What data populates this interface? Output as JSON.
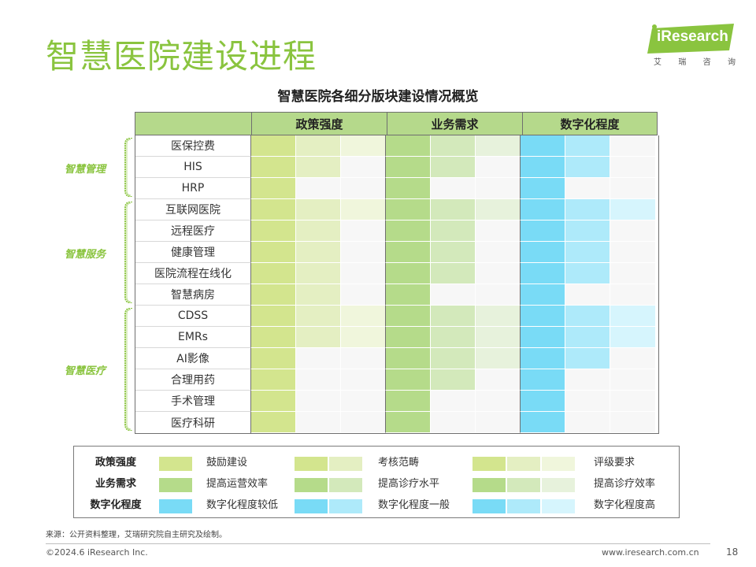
{
  "page": {
    "title": "智慧医院建设进程",
    "subtitle": "智慧医院各细分版块建设情况概览"
  },
  "logo": {
    "text": "iResearch",
    "sub": [
      "艾",
      "瑞",
      "咨",
      "询"
    ],
    "color": "#8ac43f"
  },
  "matrix": {
    "columns": [
      "政策强度",
      "业务需求",
      "数字化程度"
    ],
    "groups": [
      {
        "label": "智慧管理",
        "rows": [
          {
            "name": "医保控费",
            "levels": [
              3,
              3,
              2
            ]
          },
          {
            "name": "HIS",
            "levels": [
              2,
              2,
              2
            ]
          },
          {
            "name": "HRP",
            "levels": [
              1,
              1,
              1
            ]
          }
        ]
      },
      {
        "label": "智慧服务",
        "rows": [
          {
            "name": "互联网医院",
            "levels": [
              3,
              3,
              3
            ]
          },
          {
            "name": "远程医疗",
            "levels": [
              2,
              2,
              2
            ]
          },
          {
            "name": "健康管理",
            "levels": [
              2,
              2,
              2
            ]
          },
          {
            "name": "医院流程在线化",
            "levels": [
              2,
              2,
              2
            ]
          },
          {
            "name": "智慧病房",
            "levels": [
              2,
              1,
              1
            ]
          }
        ]
      },
      {
        "label": "智慧医疗",
        "rows": [
          {
            "name": "CDSS",
            "levels": [
              3,
              3,
              3
            ]
          },
          {
            "name": "EMRs",
            "levels": [
              3,
              3,
              3
            ]
          },
          {
            "name": "AI影像",
            "levels": [
              1,
              3,
              2
            ]
          },
          {
            "name": "合理用药",
            "levels": [
              1,
              2,
              1
            ]
          },
          {
            "name": "手术管理",
            "levels": [
              1,
              1,
              1
            ]
          },
          {
            "name": "医疗科研",
            "levels": [
              1,
              1,
              1
            ]
          }
        ]
      }
    ],
    "colors": {
      "policy": [
        "#d3e58e",
        "#e4efc2",
        "#f0f6dc"
      ],
      "business": [
        "#b5db8a",
        "#d3e9bb",
        "#e7f2dc"
      ],
      "digital": [
        "#79dbf6",
        "#aeeafa",
        "#d6f5fd"
      ]
    }
  },
  "legend": {
    "rows": [
      {
        "name": "政策强度",
        "labels": [
          "鼓励建设",
          "考核范畴",
          "评级要求"
        ]
      },
      {
        "name": "业务需求",
        "labels": [
          "提高运营效率",
          "提高诊疗水平",
          "提高诊疗效率"
        ]
      },
      {
        "name": "数字化程度",
        "labels": [
          "数字化程度较低",
          "数字化程度一般",
          "数字化程度高"
        ]
      }
    ]
  },
  "footer": {
    "source": "来源：公开资料整理，艾瑞研究院自主研究及绘制。",
    "copyright": "©2024.6 iResearch Inc.",
    "website": "www.iresearch.com.cn",
    "page": "18"
  }
}
